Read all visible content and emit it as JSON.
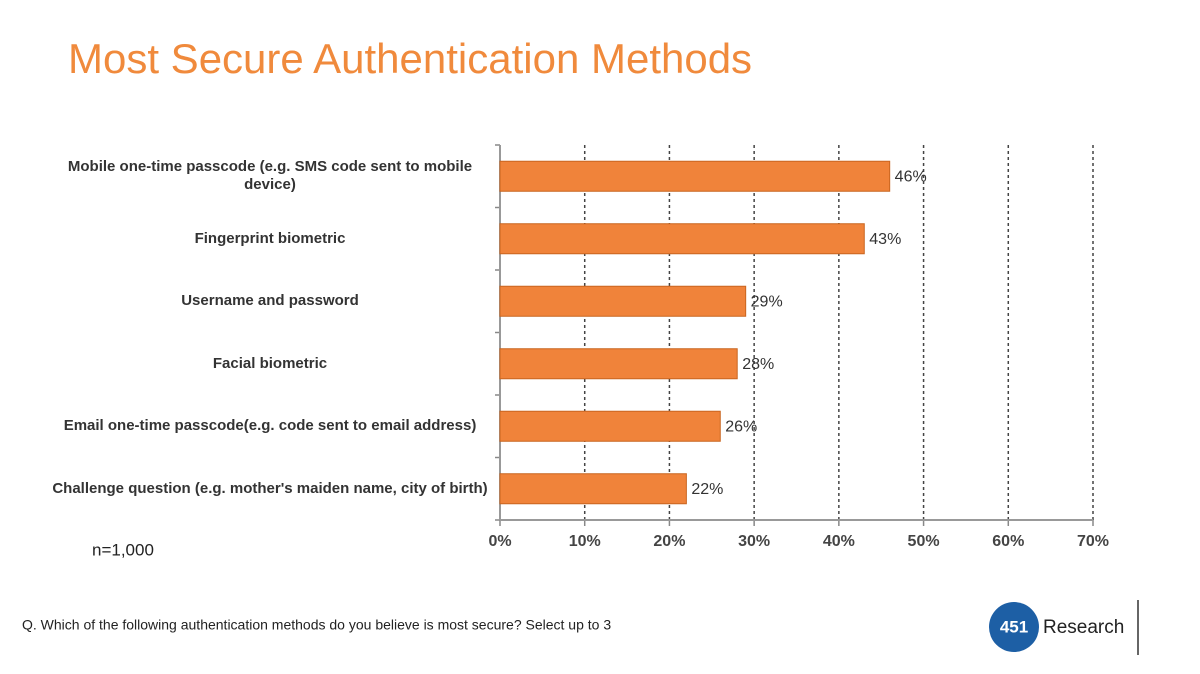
{
  "chart_data": {
    "type": "barh",
    "title": "Most Secure Authentication Methods",
    "categories": [
      "Mobile one-time passcode (e.g. SMS code sent to mobile device)",
      "Fingerprint biometric",
      "Username and password",
      "Facial biometric",
      "Email one-time passcode(e.g. code sent to email address)",
      "Challenge question (e.g. mother's maiden name, city of birth)"
    ],
    "values": [
      46,
      43,
      29,
      28,
      26,
      22
    ],
    "value_labels": [
      "46%",
      "43%",
      "29%",
      "28%",
      "26%",
      "22%"
    ],
    "color": "#f0833a",
    "xlim": [
      0,
      70
    ],
    "xticks": [
      {
        "value": 0,
        "label": "0%"
      },
      {
        "value": 10,
        "label": "10%"
      },
      {
        "value": 20,
        "label": "20%"
      },
      {
        "value": 30,
        "label": "30%"
      },
      {
        "value": 40,
        "label": "40%"
      },
      {
        "value": 50,
        "label": "50%"
      },
      {
        "value": 60,
        "label": "60%"
      },
      {
        "value": 70,
        "label": "70%"
      }
    ],
    "grid": true,
    "note": "n=1,000",
    "footnote": "Q. Which of the following authentication methods do you believe is most secure? Select up to 3",
    "logo": {
      "number": "451",
      "text": "Research"
    }
  }
}
